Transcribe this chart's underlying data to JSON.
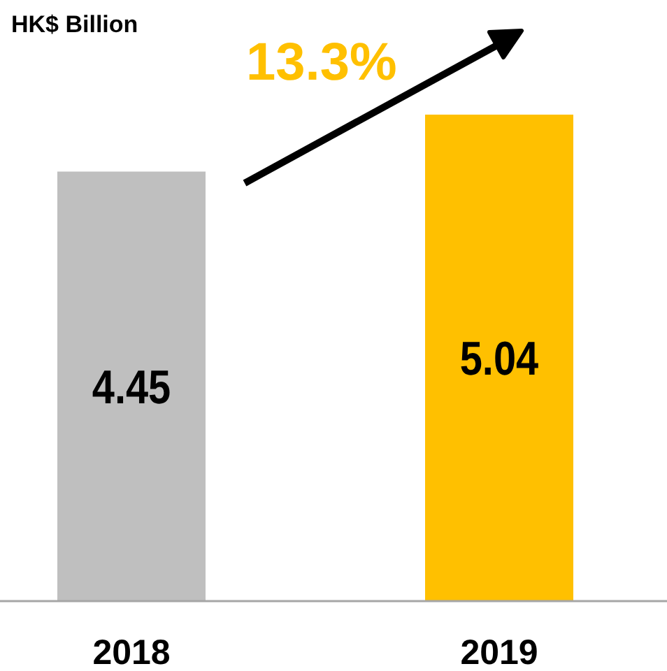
{
  "chart_data": {
    "type": "bar",
    "ylabel": "HK$ Billion",
    "categories": [
      "2018",
      "2019"
    ],
    "values": [
      4.45,
      5.04
    ],
    "colors": [
      "#bfbfbf",
      "#ffc000"
    ],
    "tick_labels": "x",
    "data_labels": true,
    "grid": false,
    "annotations": [
      "13.3%"
    ]
  }
}
